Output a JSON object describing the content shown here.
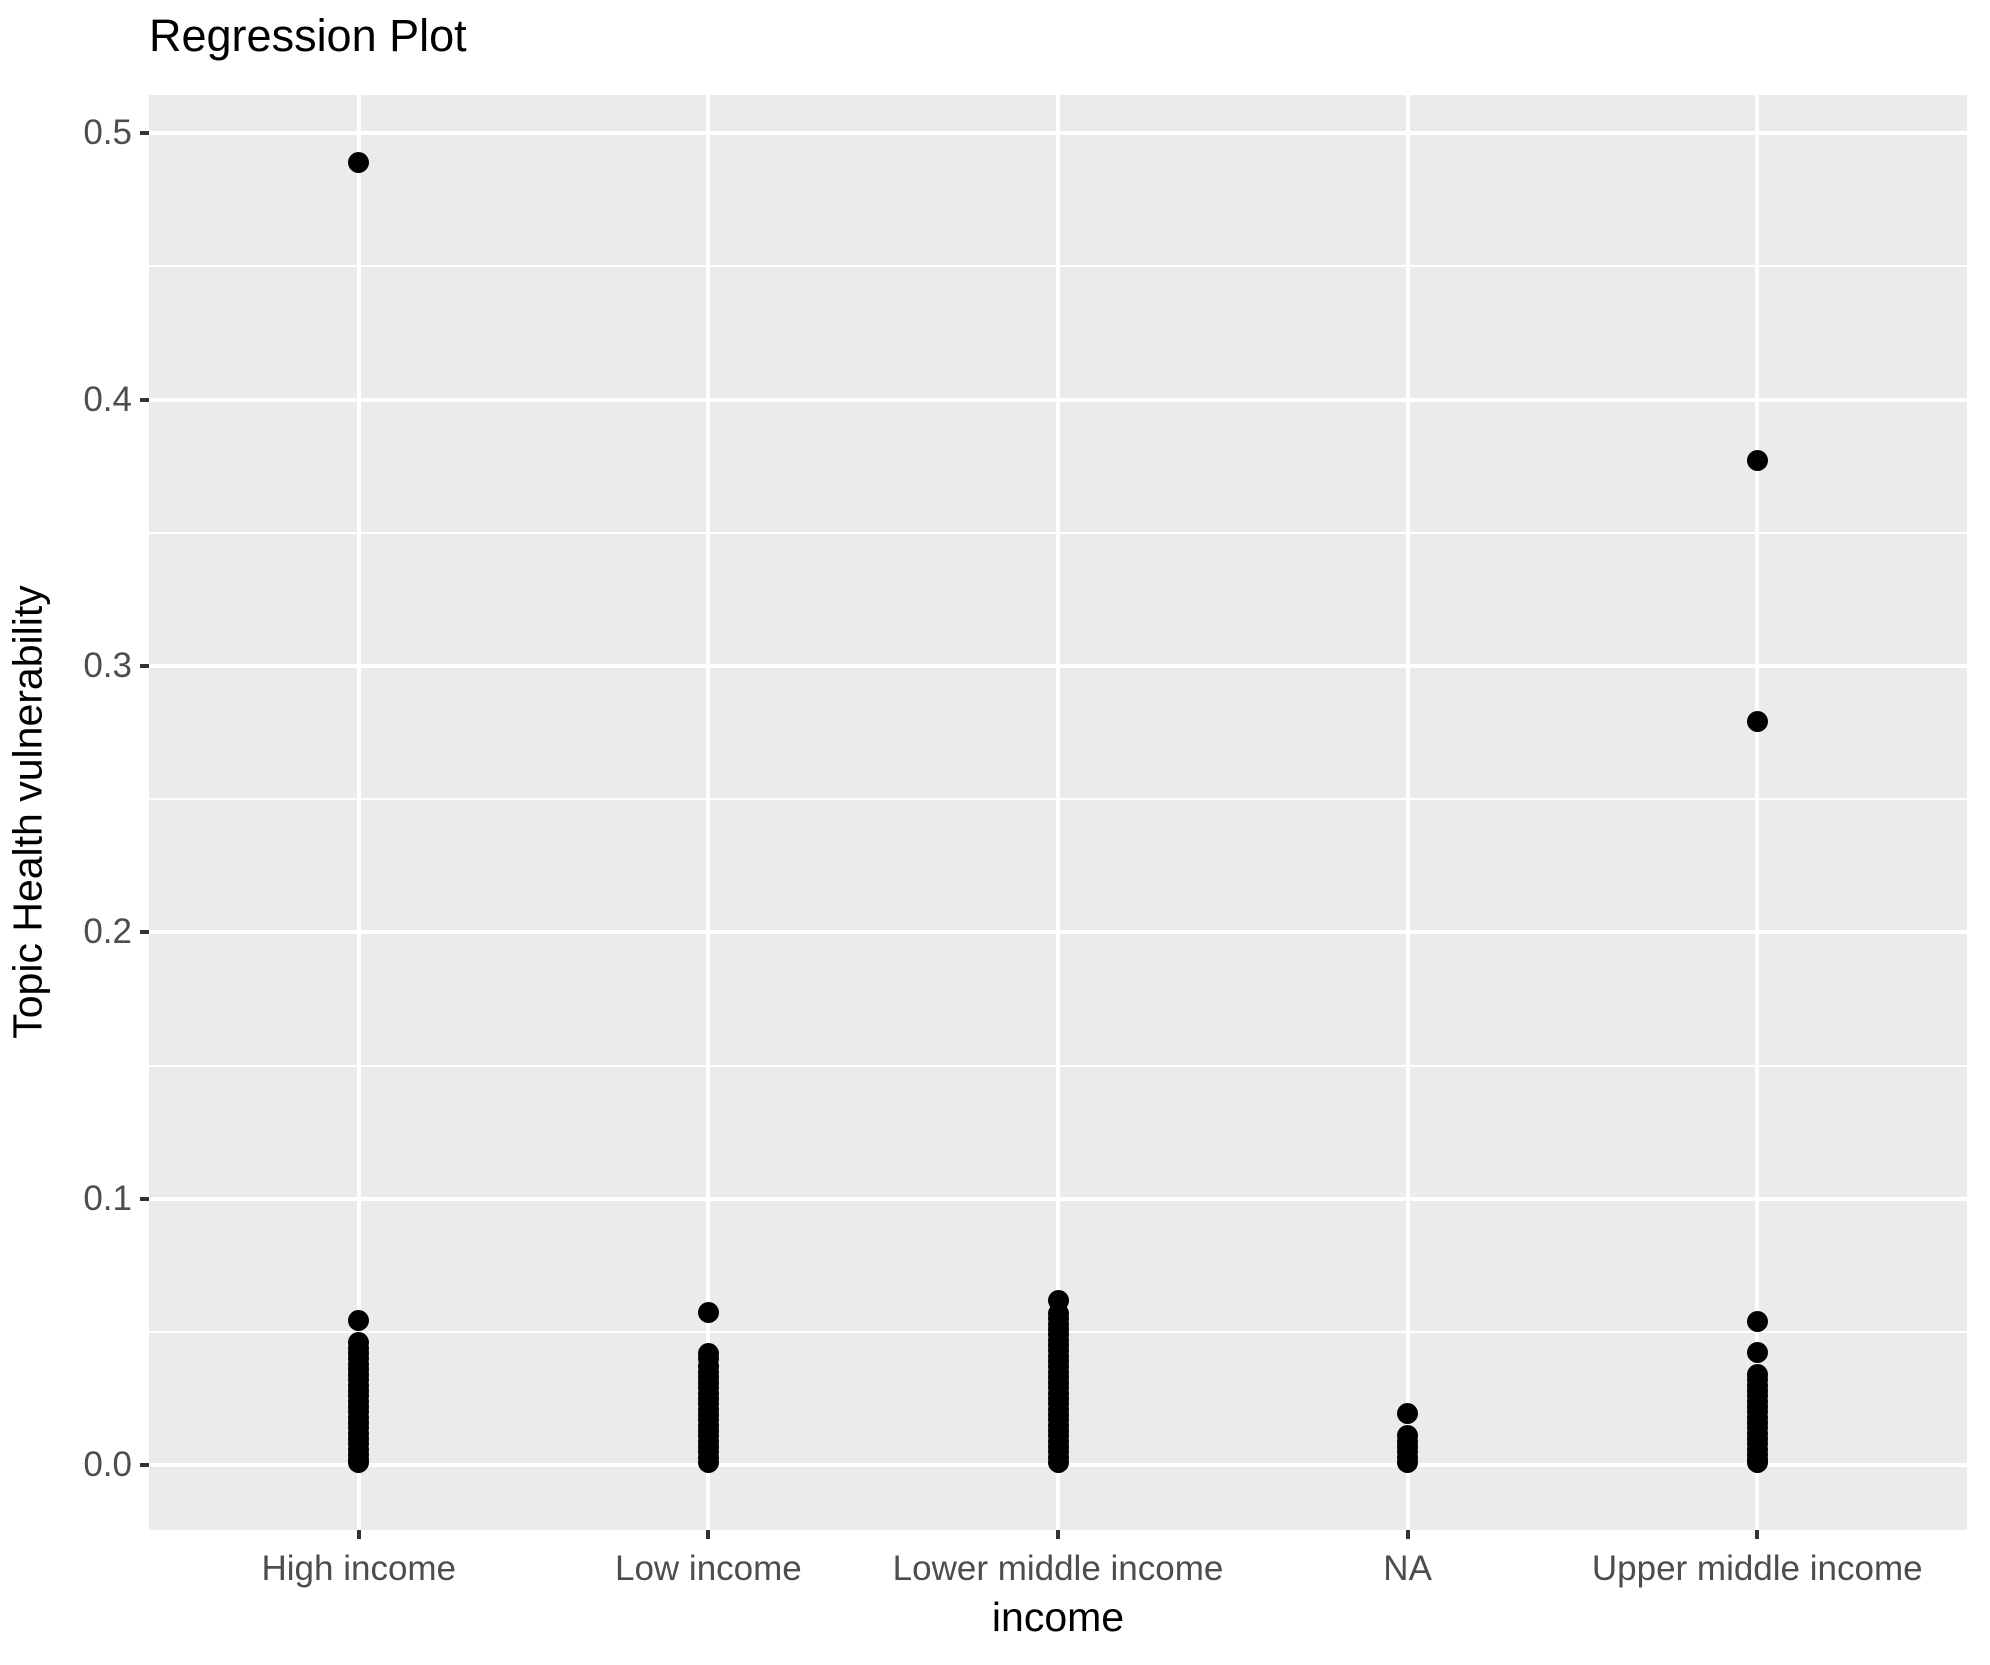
{
  "title": "Regression Plot",
  "chart_data": {
    "type": "scatter",
    "title": "Regression Plot",
    "xlabel": "income",
    "ylabel": "Topic Health vulnerability",
    "categories": [
      "High income",
      "Low income",
      "Lower middle income",
      "NA",
      "Upper middle income"
    ],
    "yticks": [
      {
        "label": "0.0",
        "value": 0.0
      },
      {
        "label": "0.1",
        "value": 0.1
      },
      {
        "label": "0.2",
        "value": 0.2
      },
      {
        "label": "0.3",
        "value": 0.3
      },
      {
        "label": "0.4",
        "value": 0.4
      },
      {
        "label": "0.5",
        "value": 0.5
      }
    ],
    "yminor_ticks": [
      0.05,
      0.15,
      0.25,
      0.35,
      0.45
    ],
    "ylim": [
      -0.0243,
      0.5143
    ],
    "grid": {
      "major": true,
      "minor": true,
      "color": "#FFFFFF",
      "panel_background": "#EBEBEB"
    },
    "legend": "none",
    "point_color": "#000000",
    "series": [
      {
        "name": "High income",
        "values": [
          0.489,
          0.0545,
          0.046,
          0.044,
          0.042,
          0.04,
          0.038,
          0.036,
          0.034,
          0.032,
          0.03,
          0.028,
          0.026,
          0.024,
          0.022,
          0.02,
          0.018,
          0.016,
          0.014,
          0.012,
          0.01,
          0.008,
          0.006,
          0.004,
          0.002,
          0.001
        ]
      },
      {
        "name": "Low income",
        "values": [
          0.0574,
          0.042,
          0.04,
          0.037,
          0.035,
          0.033,
          0.031,
          0.029,
          0.027,
          0.025,
          0.023,
          0.021,
          0.019,
          0.017,
          0.015,
          0.013,
          0.011,
          0.009,
          0.007,
          0.005,
          0.003,
          0.001
        ]
      },
      {
        "name": "Lower middle income",
        "values": [
          0.062,
          0.057,
          0.055,
          0.053,
          0.051,
          0.049,
          0.047,
          0.045,
          0.043,
          0.041,
          0.039,
          0.037,
          0.035,
          0.033,
          0.031,
          0.029,
          0.027,
          0.025,
          0.023,
          0.021,
          0.019,
          0.017,
          0.015,
          0.013,
          0.011,
          0.009,
          0.007,
          0.005,
          0.003,
          0.001
        ]
      },
      {
        "name": "NA",
        "values": [
          0.0195,
          0.011,
          0.009,
          0.007,
          0.005,
          0.003,
          0.001
        ]
      },
      {
        "name": "Upper middle income",
        "values": [
          0.377,
          0.279,
          0.054,
          0.0424,
          0.034,
          0.032,
          0.03,
          0.028,
          0.026,
          0.024,
          0.022,
          0.02,
          0.018,
          0.016,
          0.014,
          0.012,
          0.01,
          0.008,
          0.006,
          0.004,
          0.002,
          0.001
        ]
      }
    ]
  },
  "colors": {
    "panel_background": "#EBEBEB",
    "gridline": "#FFFFFF",
    "point": "#000000",
    "tick_mark": "#333333",
    "tick_label": "#4D4D4D",
    "axis_title": "#000000",
    "plot_title": "#000000",
    "figure_background": "#FFFFFF"
  }
}
